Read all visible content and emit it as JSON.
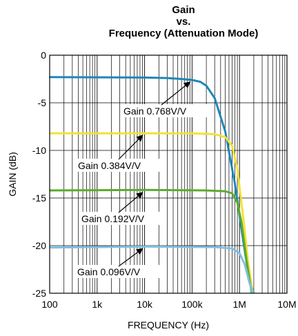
{
  "chart_data": {
    "type": "line",
    "title_lines": [
      "Gain",
      "vs.",
      "Frequency (Attenuation Mode)"
    ],
    "xlabel": "FREQUENCY (Hz)",
    "ylabel": "GAIN (dB)",
    "x_scale": "log",
    "xlim": [
      100,
      10000000
    ],
    "ylim": [
      -25,
      0
    ],
    "x_ticks": [
      100,
      1000,
      10000,
      100000,
      1000000,
      10000000
    ],
    "x_tick_labels": [
      "100",
      "1k",
      "10k",
      "100k",
      "1M",
      "10M"
    ],
    "y_ticks": [
      0,
      -5,
      -10,
      -15,
      -20,
      -25
    ],
    "y_tick_labels": [
      "0",
      "-5",
      "-10",
      "-15",
      "-20",
      "-25"
    ],
    "grid": true,
    "series": [
      {
        "name": "Gain 0.768V/V",
        "color": "#1f86b8",
        "x": [
          100,
          10000,
          30000,
          60000,
          100000,
          150000,
          200000,
          300000,
          500000,
          800000,
          1200000,
          1600000,
          2000000
        ],
        "y": [
          -2.3,
          -2.35,
          -2.4,
          -2.5,
          -2.6,
          -2.8,
          -3.2,
          -4.5,
          -8.0,
          -13.5,
          -19.5,
          -23.5,
          -25
        ]
      },
      {
        "name": "Gain 0.384V/V",
        "color": "#f3e232",
        "x": [
          100,
          100000,
          300000,
          500000,
          700000,
          900000,
          1200000,
          1500000,
          1900000
        ],
        "y": [
          -8.2,
          -8.2,
          -8.3,
          -8.6,
          -9.5,
          -12.0,
          -17.0,
          -21.5,
          -25
        ]
      },
      {
        "name": "Gain 0.192V/V",
        "color": "#5bab2c",
        "x": [
          100,
          10000,
          200000,
          500000,
          700000,
          900000,
          1100000,
          1400000,
          1800000
        ],
        "y": [
          -14.2,
          -14.15,
          -14.2,
          -14.3,
          -14.5,
          -15.5,
          -17.5,
          -21.5,
          -25
        ]
      },
      {
        "name": "Gain 0.096V/V",
        "color": "#7fbfe2",
        "x": [
          100,
          10000,
          300000,
          700000,
          1000000,
          1300000,
          1600000,
          1900000
        ],
        "y": [
          -20.2,
          -20.1,
          -20.15,
          -20.3,
          -20.8,
          -22.0,
          -23.8,
          -25
        ]
      }
    ],
    "annotations": [
      {
        "text": "Gain 0.768V/V",
        "series": 0,
        "arrow_to": [
          100000,
          -2.6
        ]
      },
      {
        "text": "Gain 0.384V/V",
        "series": 1,
        "arrow_to": [
          10000,
          -8.2
        ]
      },
      {
        "text": "Gain 0.192V/V",
        "series": 2,
        "arrow_to": [
          10000,
          -14.2
        ]
      },
      {
        "text": "Gain 0.096V/V",
        "series": 3,
        "arrow_to": [
          10000,
          -20.1
        ]
      }
    ]
  }
}
